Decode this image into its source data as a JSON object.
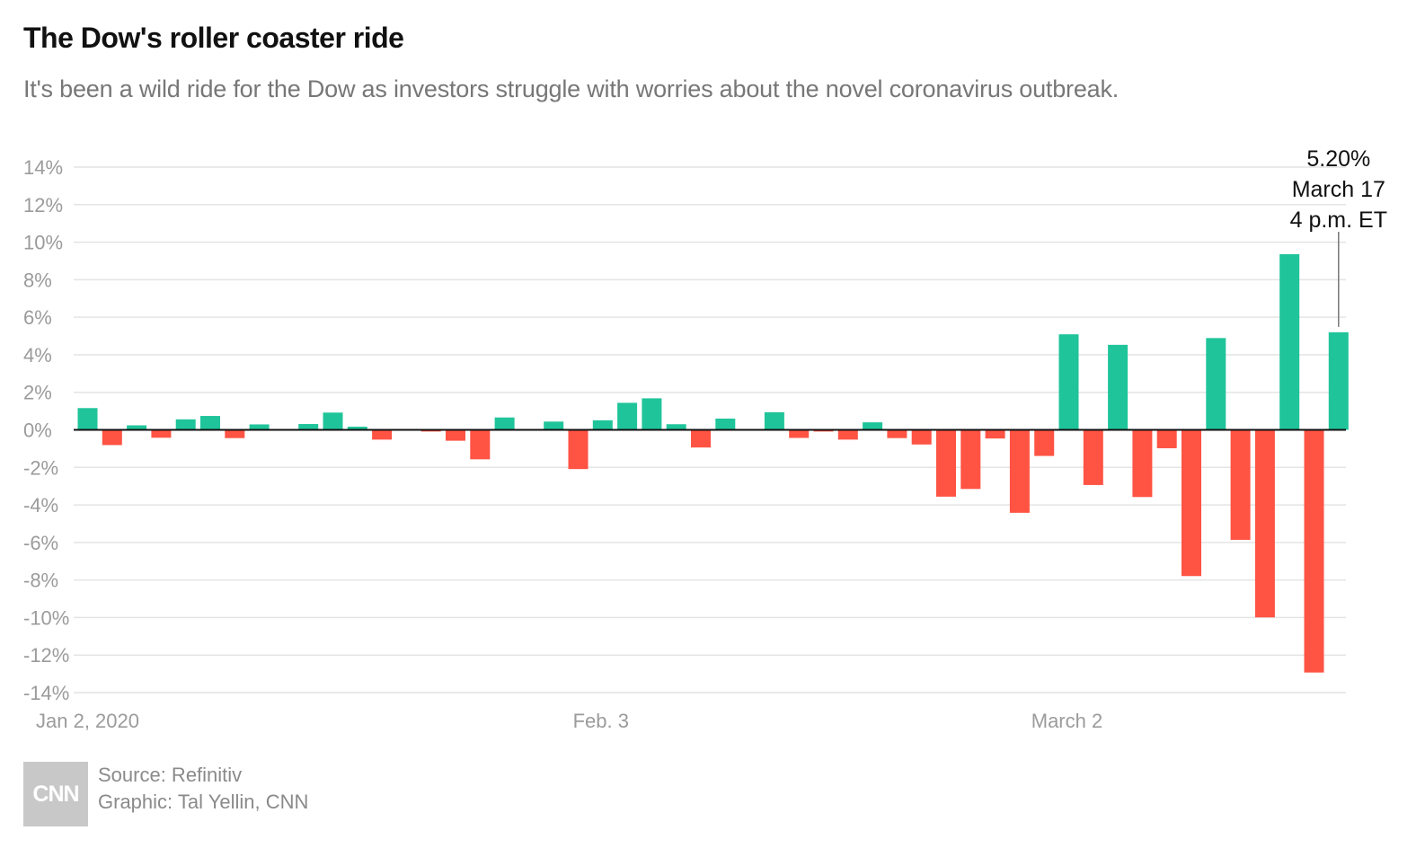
{
  "header": {
    "title": "The Dow's roller coaster ride",
    "subtitle": "It's been a wild ride for the Dow as investors struggle with worries about the novel coronavirus outbreak."
  },
  "footer": {
    "logo_text": "CNN",
    "source": "Source: Refinitiv",
    "graphic": "Graphic: Tal Yellin, CNN"
  },
  "colors": {
    "positive": "#20C49A",
    "negative": "#FF5344",
    "grid": "#e4e4e4",
    "axis_label": "#9b9b9b"
  },
  "chart_data": {
    "type": "bar",
    "title": "The Dow's roller coaster ride",
    "xlabel": "",
    "ylabel": "",
    "ylim": [
      -14,
      14
    ],
    "yticks": [
      14,
      12,
      10,
      8,
      6,
      4,
      2,
      0,
      -2,
      -4,
      -6,
      -8,
      -10,
      -12,
      -14
    ],
    "ytick_labels": [
      "14%",
      "12%",
      "10%",
      "8%",
      "6%",
      "4%",
      "2%",
      "0%",
      "-2%",
      "-4%",
      "-6%",
      "-8%",
      "-10%",
      "-12%",
      "-14%"
    ],
    "grid": true,
    "x_labels": [
      {
        "index": 0,
        "text": "Jan 2, 2020"
      },
      {
        "index": 21,
        "text": "Feb. 3"
      },
      {
        "index": 40,
        "text": "March 2"
      }
    ],
    "values": [
      1.16,
      -0.81,
      0.24,
      -0.42,
      0.56,
      0.74,
      -0.44,
      0.29,
      0,
      0.31,
      0.92,
      0.17,
      -0.52,
      0,
      -0.09,
      -0.58,
      -1.57,
      0.66,
      0,
      0.44,
      -2.09,
      0.51,
      1.44,
      1.68,
      0.3,
      -0.94,
      0.6,
      0,
      0.94,
      -0.43,
      -0.09,
      -0.52,
      0.4,
      -0.44,
      -0.78,
      -3.56,
      -3.15,
      -0.46,
      -4.42,
      -1.39,
      5.09,
      -2.94,
      4.53,
      -3.58,
      -0.98,
      -7.79,
      4.89,
      -5.86,
      -9.99,
      9.36,
      -12.93,
      5.2
    ],
    "annotation": {
      "index": 51,
      "lines": [
        "5.20%",
        "March 17",
        "4 p.m. ET"
      ]
    }
  }
}
